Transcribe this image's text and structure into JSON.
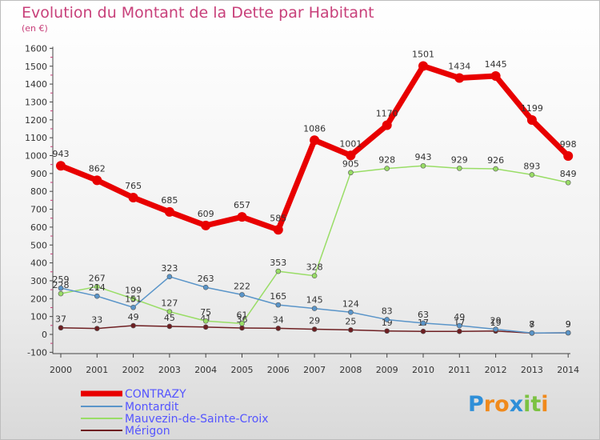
{
  "title": "Evolution du Montant de la Dette par Habitant",
  "subtitle": "(en €)",
  "logo": {
    "text": [
      "P",
      "r",
      "o",
      "x",
      "i",
      "t",
      "i"
    ],
    "colors": [
      "#2f8fd8",
      "#f08a1c",
      "#f08a1c",
      "#2f8fd8",
      "#7cc242",
      "#7cc242",
      "#f08a1c"
    ]
  },
  "chart_data": {
    "type": "line",
    "categories": [
      "2000",
      "2001",
      "2002",
      "2003",
      "2004",
      "2005",
      "2006",
      "2007",
      "2008",
      "2009",
      "2010",
      "2011",
      "2012",
      "2013",
      "2014"
    ],
    "ylim": [
      -100,
      1600
    ],
    "yticks": [
      -100,
      0,
      100,
      200,
      300,
      400,
      500,
      600,
      700,
      800,
      900,
      1000,
      1100,
      1200,
      1300,
      1400,
      1500,
      1600
    ],
    "grid": false,
    "legend_position": "bottom-left",
    "series": [
      {
        "name": "CONTRAZY",
        "color": "#e80000",
        "values": [
          943,
          862,
          765,
          685,
          609,
          657,
          585,
          1086,
          1001,
          1170,
          1501,
          1434,
          1445,
          1199,
          998
        ],
        "labels": [
          "943",
          "862",
          "765",
          "685",
          "609",
          "657",
          "585",
          "1086",
          "1001",
          "1170",
          "1501",
          "1434",
          "1445",
          "1199",
          "998"
        ]
      },
      {
        "name": "Montardit",
        "color": "#5a95c9",
        "values": [
          259,
          214,
          151,
          323,
          263,
          222,
          165,
          145,
          124,
          83,
          63,
          49,
          29,
          8,
          9
        ],
        "labels": [
          "259",
          "214",
          "151",
          "323",
          "263",
          "222",
          "165",
          "145",
          "124",
          "83",
          "63",
          "49",
          "29",
          "8",
          "9"
        ]
      },
      {
        "name": "Mauvezin-de-Sainte-Croix",
        "color": "#99dd66",
        "values": [
          228,
          267,
          199,
          127,
          75,
          61,
          353,
          328,
          905,
          928,
          943,
          929,
          926,
          893,
          849
        ],
        "labels": [
          "228",
          "267",
          "199",
          "127",
          "75",
          "61",
          "353",
          "328",
          "905",
          "928",
          "943",
          "929",
          "926",
          "893",
          "849"
        ]
      },
      {
        "name": "Mérigon",
        "color": "#6e1f22",
        "values": [
          37,
          33,
          49,
          45,
          41,
          36,
          34,
          29,
          25,
          19,
          17,
          17,
          19,
          7,
          9
        ],
        "labels": [
          "37",
          "33",
          "49",
          "45",
          "41",
          "36",
          "34",
          "29",
          "25",
          "19",
          "17",
          "17",
          "19",
          "7",
          "9"
        ]
      }
    ]
  }
}
